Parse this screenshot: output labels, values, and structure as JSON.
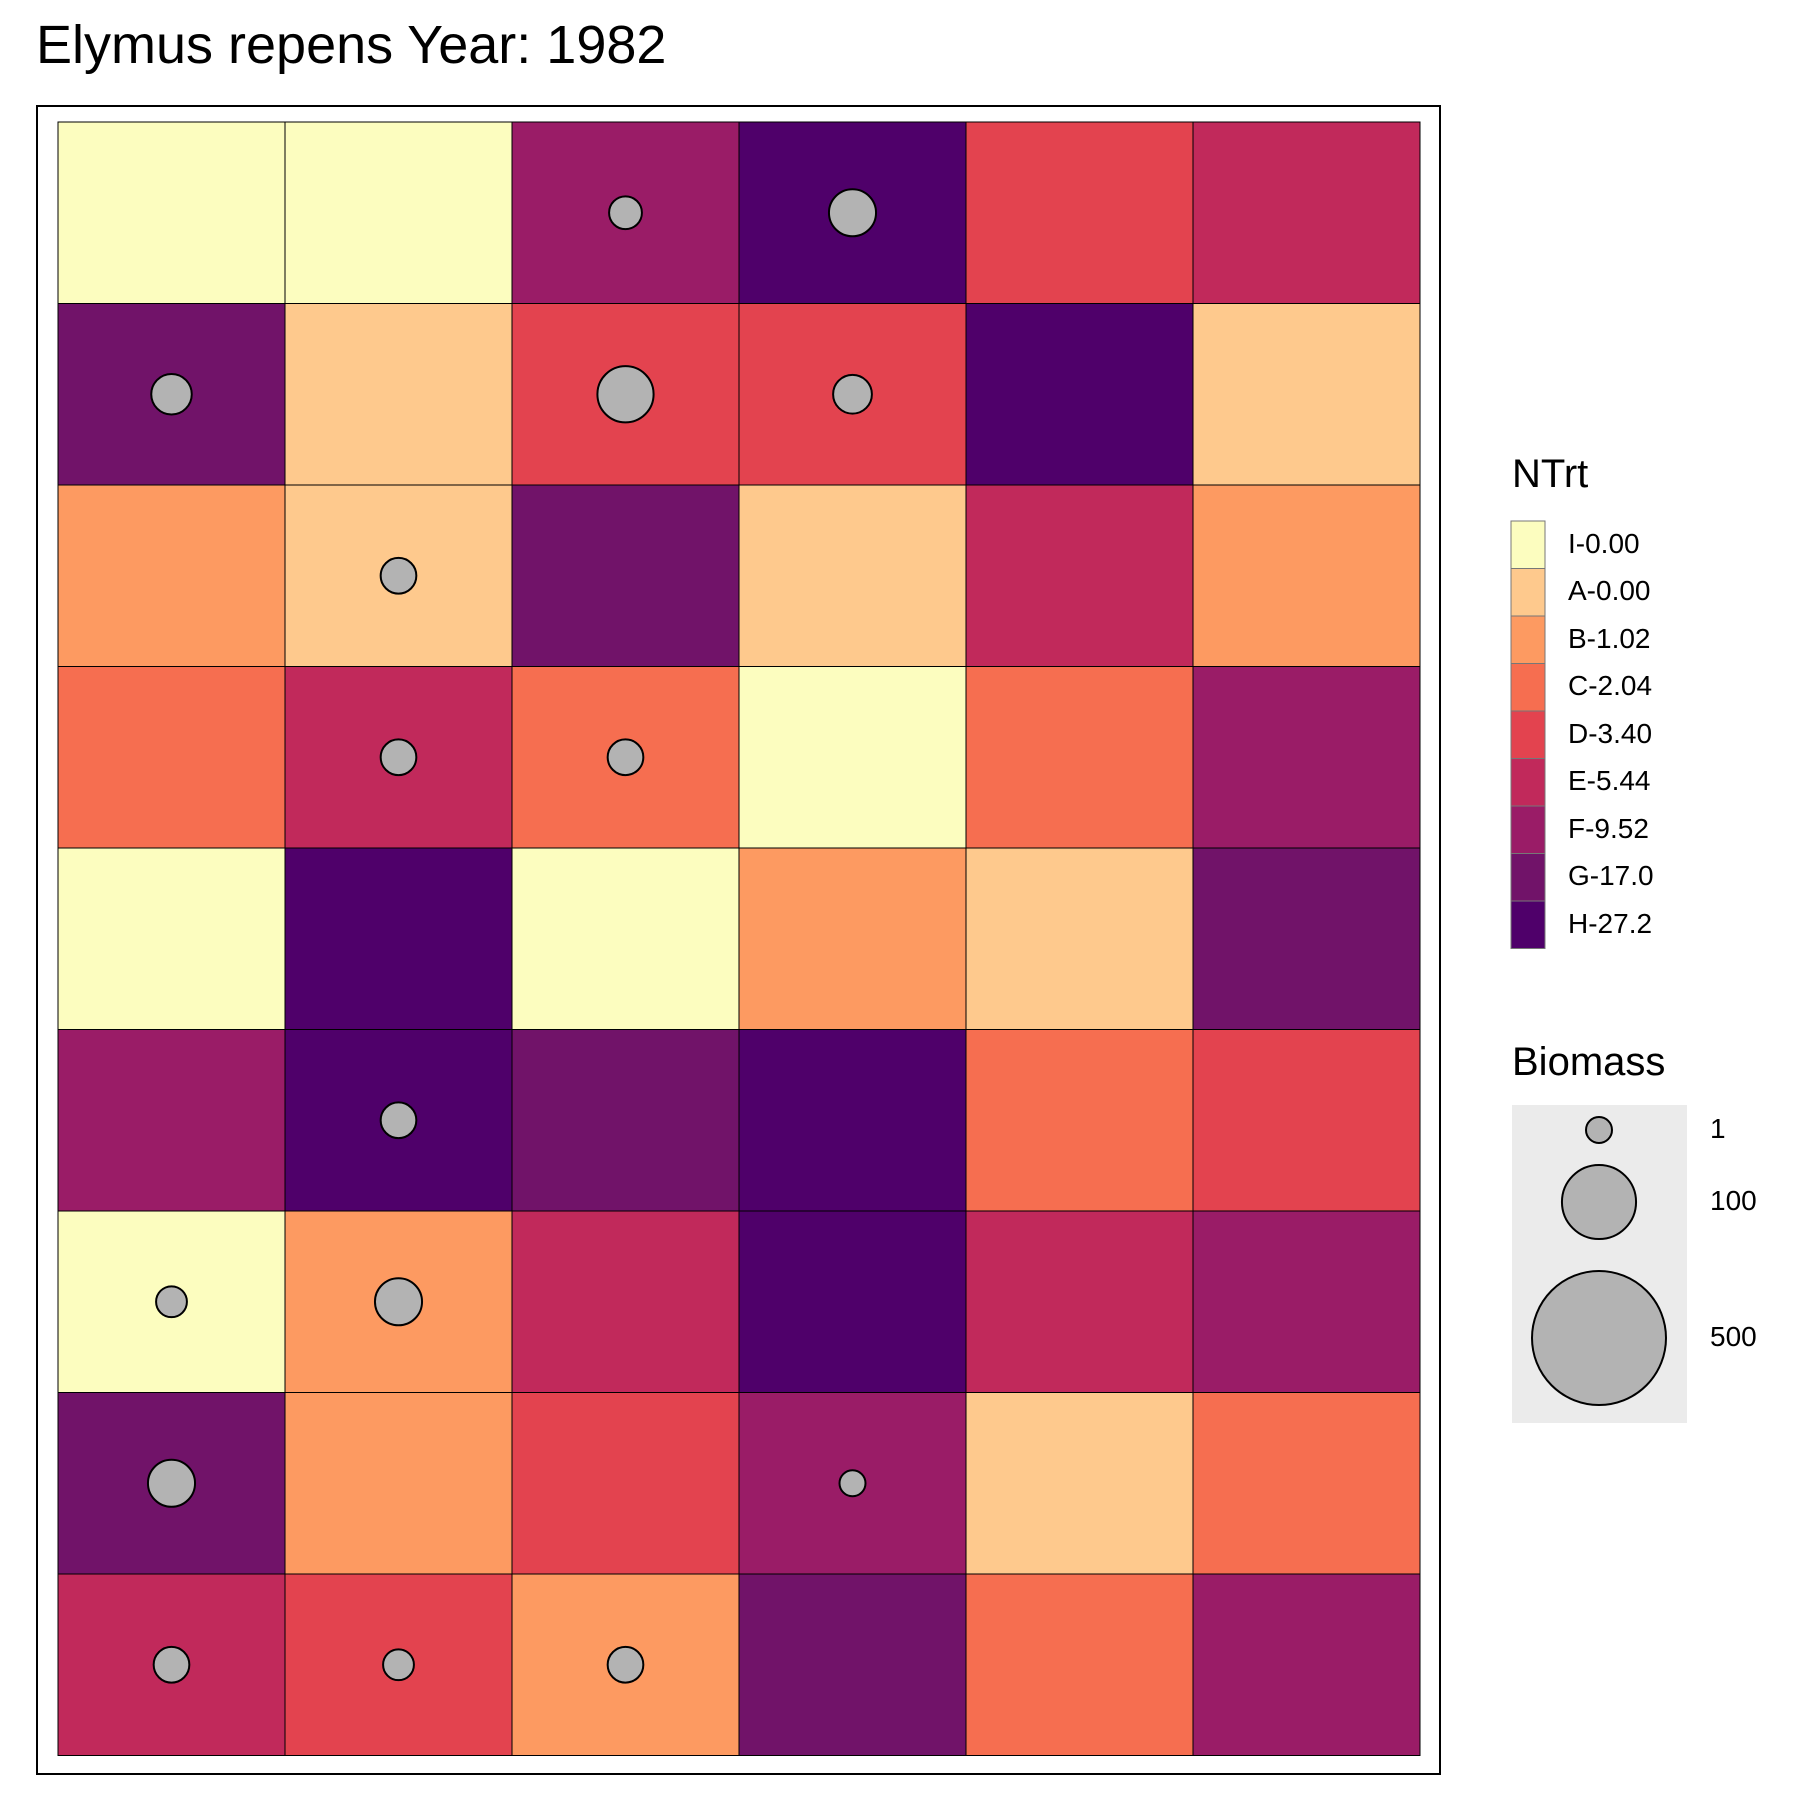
{
  "chart_data": {
    "type": "heatmap",
    "title": "Elymus repens Year: 1982",
    "n_rows": 9,
    "n_cols": 6,
    "fill_legend": {
      "title": "NTrt",
      "levels": [
        {
          "label": "I-0.00",
          "color": "#FCFDBF"
        },
        {
          "label": "A-0.00",
          "color": "#FEC98D"
        },
        {
          "label": "B-1.02",
          "color": "#FD9A61"
        },
        {
          "label": "C-2.04",
          "color": "#F66E50"
        },
        {
          "label": "D-3.40",
          "color": "#E3434F"
        },
        {
          "label": "E-5.44",
          "color": "#C1295B"
        },
        {
          "label": "F-9.52",
          "color": "#9A1C67"
        },
        {
          "label": "G-17.0",
          "color": "#711369"
        },
        {
          "label": "H-27.2",
          "color": "#4F006A"
        }
      ]
    },
    "size_legend": {
      "title": "Biomass",
      "breaks": [
        {
          "label": "1",
          "value": 1
        },
        {
          "label": "100",
          "value": 100
        },
        {
          "label": "500",
          "value": 500
        }
      ]
    },
    "cells": [
      [
        "I-0.00",
        "I-0.00",
        "F-9.52",
        "H-27.2",
        "D-3.40",
        "E-5.44"
      ],
      [
        "G-17.0",
        "A-0.00",
        "D-3.40",
        "D-3.40",
        "H-27.2",
        "A-0.00"
      ],
      [
        "B-1.02",
        "A-0.00",
        "G-17.0",
        "A-0.00",
        "E-5.44",
        "B-1.02"
      ],
      [
        "C-2.04",
        "E-5.44",
        "C-2.04",
        "I-0.00",
        "C-2.04",
        "F-9.52"
      ],
      [
        "I-0.00",
        "H-27.2",
        "I-0.00",
        "B-1.02",
        "A-0.00",
        "G-17.0"
      ],
      [
        "F-9.52",
        "H-27.2",
        "G-17.0",
        "H-27.2",
        "C-2.04",
        "D-3.40"
      ],
      [
        "I-0.00",
        "B-1.02",
        "E-5.44",
        "H-27.2",
        "E-5.44",
        "F-9.52"
      ],
      [
        "G-17.0",
        "B-1.02",
        "D-3.40",
        "F-9.52",
        "A-0.00",
        "C-2.04"
      ],
      [
        "E-5.44",
        "D-3.40",
        "B-1.02",
        "G-17.0",
        "C-2.04",
        "F-9.52"
      ]
    ],
    "biomass_points": [
      {
        "row": 1,
        "col": 3,
        "biomass": 3
      },
      {
        "row": 1,
        "col": 4,
        "biomass": 20
      },
      {
        "row": 2,
        "col": 1,
        "biomass": 10
      },
      {
        "row": 2,
        "col": 3,
        "biomass": 40
      },
      {
        "row": 2,
        "col": 4,
        "biomass": 8
      },
      {
        "row": 3,
        "col": 2,
        "biomass": 5
      },
      {
        "row": 4,
        "col": 2,
        "biomass": 5
      },
      {
        "row": 4,
        "col": 3,
        "biomass": 5
      },
      {
        "row": 6,
        "col": 2,
        "biomass": 5
      },
      {
        "row": 7,
        "col": 1,
        "biomass": 2
      },
      {
        "row": 7,
        "col": 2,
        "biomass": 20
      },
      {
        "row": 8,
        "col": 1,
        "biomass": 20
      },
      {
        "row": 8,
        "col": 4,
        "biomass": 1
      },
      {
        "row": 9,
        "col": 1,
        "biomass": 5
      },
      {
        "row": 9,
        "col": 2,
        "biomass": 2
      },
      {
        "row": 9,
        "col": 3,
        "biomass": 5
      }
    ],
    "point_fill": "#B3B3B3",
    "size_legend_bg": "#EBEBEB"
  }
}
